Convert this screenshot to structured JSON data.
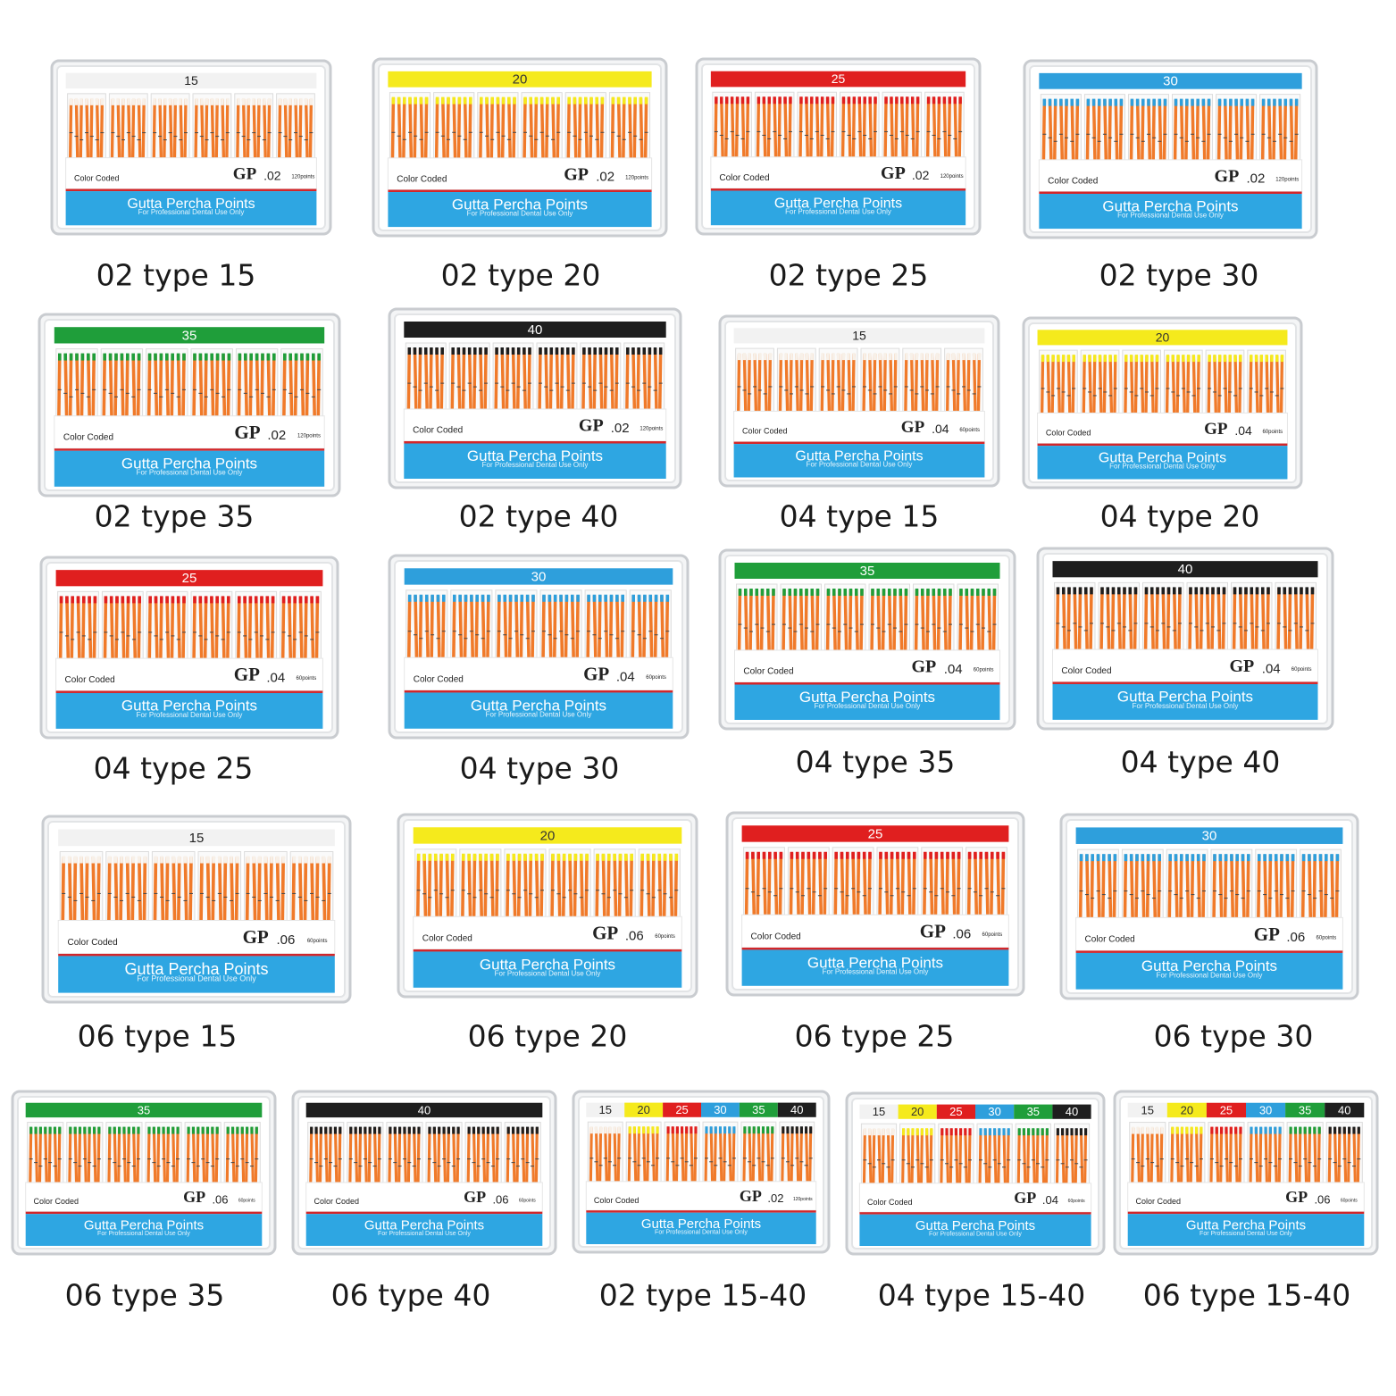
{
  "box_text": {
    "color_coded": "Color Coded",
    "brand": "GP",
    "product": "Gutta Percha Points",
    "note": "For Professional Dental Use Only"
  },
  "band_colors": {
    "15": {
      "fill": "#f2f2f2",
      "text": "#222222"
    },
    "20": {
      "fill": "#f5ea1c",
      "text": "#333333"
    },
    "25": {
      "fill": "#e01f1f",
      "text": "#ffffff"
    },
    "30": {
      "fill": "#2e9fdc",
      "text": "#ffffff"
    },
    "35": {
      "fill": "#1f9e3a",
      "text": "#ffffff"
    },
    "40": {
      "fill": "#1e1e1e",
      "text": "#ffffff"
    }
  },
  "items": [
    {
      "caption": "02 type 15",
      "bands": [
        "15"
      ],
      "taper": ".02",
      "count": "120points"
    },
    {
      "caption": "02 type 20",
      "bands": [
        "20"
      ],
      "taper": ".02",
      "count": "120points"
    },
    {
      "caption": "02 type 25",
      "bands": [
        "25"
      ],
      "taper": ".02",
      "count": "120points"
    },
    {
      "caption": "02 type 30",
      "bands": [
        "30"
      ],
      "taper": ".02",
      "count": "120points"
    },
    {
      "caption": "02 type 35",
      "bands": [
        "35"
      ],
      "taper": ".02",
      "count": "120points"
    },
    {
      "caption": "02 type 40",
      "bands": [
        "40"
      ],
      "taper": ".02",
      "count": "120points"
    },
    {
      "caption": "04 type 15",
      "bands": [
        "15"
      ],
      "taper": ".04",
      "count": "60points"
    },
    {
      "caption": "04 type 20",
      "bands": [
        "20"
      ],
      "taper": ".04",
      "count": "60points"
    },
    {
      "caption": "04 type 25",
      "bands": [
        "25"
      ],
      "taper": ".04",
      "count": "60points"
    },
    {
      "caption": "04 type 30",
      "bands": [
        "30"
      ],
      "taper": ".04",
      "count": "60points"
    },
    {
      "caption": "04 type 35",
      "bands": [
        "35"
      ],
      "taper": ".04",
      "count": "60points"
    },
    {
      "caption": "04 type 40",
      "bands": [
        "40"
      ],
      "taper": ".04",
      "count": "60points"
    },
    {
      "caption": "06 type 15",
      "bands": [
        "15"
      ],
      "taper": ".06",
      "count": "60points"
    },
    {
      "caption": "06 type 20",
      "bands": [
        "20"
      ],
      "taper": ".06",
      "count": "60points"
    },
    {
      "caption": "06 type 25",
      "bands": [
        "25"
      ],
      "taper": ".06",
      "count": "60points"
    },
    {
      "caption": "06 type 30",
      "bands": [
        "30"
      ],
      "taper": ".06",
      "count": "60points"
    },
    {
      "caption": "06 type 35",
      "bands": [
        "35"
      ],
      "taper": ".06",
      "count": "60points"
    },
    {
      "caption": "06 type 40",
      "bands": [
        "40"
      ],
      "taper": ".06",
      "count": "60points"
    },
    {
      "caption": "02 type 15-40",
      "bands": [
        "15",
        "20",
        "25",
        "30",
        "35",
        "40"
      ],
      "taper": ".02",
      "count": "120points"
    },
    {
      "caption": "04 type 15-40",
      "bands": [
        "15",
        "20",
        "25",
        "30",
        "35",
        "40"
      ],
      "taper": ".04",
      "count": "60points"
    },
    {
      "caption": "06 type 15-40",
      "bands": [
        "15",
        "20",
        "25",
        "30",
        "35",
        "40"
      ],
      "taper": ".06",
      "count": "60points"
    }
  ]
}
